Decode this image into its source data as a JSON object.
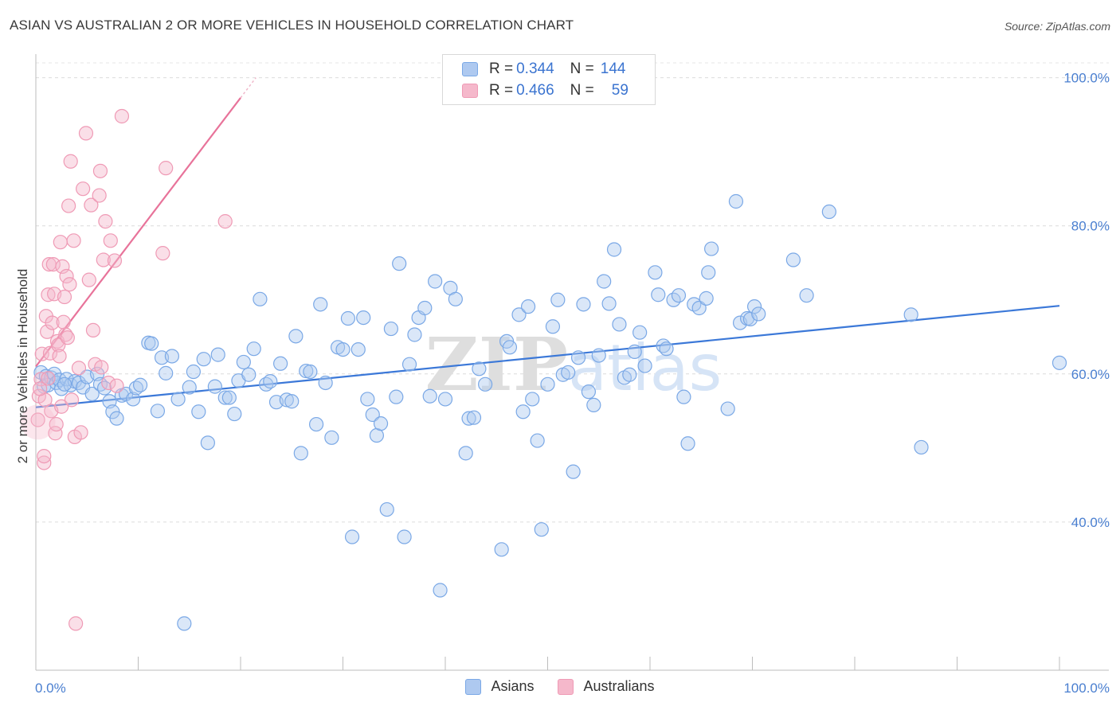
{
  "title": "ASIAN VS AUSTRALIAN 2 OR MORE VEHICLES IN HOUSEHOLD CORRELATION CHART",
  "source": "Source: ZipAtlas.com",
  "watermark": "ZIPatlas",
  "legend_top": {
    "rows": [
      {
        "r_label": "R = ",
        "r_value": "0.344",
        "n_label": "N = ",
        "n_value": "144",
        "color": "#aec9f0"
      },
      {
        "r_label": "R = ",
        "r_value": "0.466",
        "n_label": "N = ",
        "n_value": "59",
        "color": "#f5b8cb"
      }
    ]
  },
  "chart_data": {
    "type": "scatter",
    "title": "ASIAN VS AUSTRALIAN 2 OR MORE VEHICLES IN HOUSEHOLD CORRELATION CHART",
    "xlabel": "",
    "ylabel": "2 or more Vehicles in Household",
    "xlim": [
      0,
      100
    ],
    "ylim": [
      20,
      102
    ],
    "x_tick_labels": [
      "0.0%",
      "100.0%"
    ],
    "y_tick_labels": [
      "40.0%",
      "60.0%",
      "80.0%",
      "100.0%"
    ],
    "y_ticks": [
      40,
      60,
      80,
      100
    ],
    "legend": [
      "Asians",
      "Australians"
    ],
    "colors": {
      "Asians": "#7aa8e6",
      "Australians": "#ef9ab5",
      "asian_line": "#3b78d8",
      "aus_line": "#e8739a"
    },
    "series": [
      {
        "name": "Asians",
        "trend": {
          "x": [
            0,
            100
          ],
          "y": [
            55.5,
            69.2
          ]
        },
        "points": [
          [
            0.5,
            60.2
          ],
          [
            0.8,
            58.3
          ],
          [
            1.0,
            59.7
          ],
          [
            1.2,
            58.5
          ],
          [
            1.5,
            59.5
          ],
          [
            1.8,
            60.0
          ],
          [
            2.0,
            58.8
          ],
          [
            2.3,
            59.2
          ],
          [
            2.5,
            58.0
          ],
          [
            3.0,
            59.3
          ],
          [
            3.4,
            58.5
          ],
          [
            3.8,
            59.0
          ],
          [
            4.2,
            58.8
          ],
          [
            4.6,
            58.2
          ],
          [
            5.0,
            59.6
          ],
          [
            5.5,
            57.3
          ],
          [
            6.0,
            60.0
          ],
          [
            6.3,
            58.6
          ],
          [
            6.7,
            58.1
          ],
          [
            7.2,
            56.3
          ],
          [
            7.5,
            54.9
          ],
          [
            7.9,
            54.0
          ],
          [
            8.4,
            57.1
          ],
          [
            8.8,
            57.3
          ],
          [
            9.5,
            56.6
          ],
          [
            9.8,
            58.1
          ],
          [
            10.2,
            58.5
          ],
          [
            11.0,
            64.2
          ],
          [
            11.3,
            64.1
          ],
          [
            11.9,
            55.0
          ],
          [
            12.3,
            62.2
          ],
          [
            12.7,
            60.1
          ],
          [
            13.3,
            62.4
          ],
          [
            13.9,
            56.6
          ],
          [
            14.5,
            26.3
          ],
          [
            15.0,
            58.2
          ],
          [
            15.4,
            60.3
          ],
          [
            15.9,
            54.9
          ],
          [
            16.4,
            62.0
          ],
          [
            16.8,
            50.7
          ],
          [
            17.5,
            58.3
          ],
          [
            17.8,
            62.6
          ],
          [
            18.5,
            56.8
          ],
          [
            18.9,
            56.8
          ],
          [
            19.4,
            54.6
          ],
          [
            19.8,
            59.1
          ],
          [
            20.3,
            61.6
          ],
          [
            20.8,
            59.9
          ],
          [
            21.3,
            63.4
          ],
          [
            21.9,
            70.1
          ],
          [
            22.5,
            58.6
          ],
          [
            22.9,
            59.0
          ],
          [
            23.5,
            56.2
          ],
          [
            23.9,
            61.4
          ],
          [
            24.5,
            56.5
          ],
          [
            25.0,
            56.3
          ],
          [
            25.4,
            65.1
          ],
          [
            25.9,
            49.3
          ],
          [
            26.4,
            60.4
          ],
          [
            26.8,
            60.3
          ],
          [
            27.4,
            53.2
          ],
          [
            27.8,
            69.4
          ],
          [
            28.3,
            58.8
          ],
          [
            28.9,
            51.4
          ],
          [
            29.5,
            63.6
          ],
          [
            30.0,
            63.3
          ],
          [
            30.5,
            67.5
          ],
          [
            30.9,
            38.0
          ],
          [
            31.5,
            63.3
          ],
          [
            32.0,
            67.6
          ],
          [
            32.4,
            56.6
          ],
          [
            32.9,
            54.5
          ],
          [
            33.3,
            51.7
          ],
          [
            33.7,
            53.3
          ],
          [
            34.3,
            41.7
          ],
          [
            34.7,
            66.1
          ],
          [
            35.2,
            56.9
          ],
          [
            35.5,
            74.9
          ],
          [
            36.0,
            38.0
          ],
          [
            36.5,
            61.3
          ],
          [
            37.0,
            65.3
          ],
          [
            37.4,
            67.6
          ],
          [
            38.0,
            68.9
          ],
          [
            38.5,
            57.0
          ],
          [
            39.0,
            72.5
          ],
          [
            39.5,
            30.8
          ],
          [
            40.0,
            56.6
          ],
          [
            40.5,
            71.6
          ],
          [
            41.0,
            70.1
          ],
          [
            42.0,
            49.3
          ],
          [
            42.3,
            54.0
          ],
          [
            42.8,
            54.1
          ],
          [
            43.3,
            60.7
          ],
          [
            43.9,
            58.6
          ],
          [
            45.5,
            36.3
          ],
          [
            46.0,
            64.4
          ],
          [
            46.3,
            63.6
          ],
          [
            47.2,
            68.0
          ],
          [
            47.6,
            54.9
          ],
          [
            48.1,
            69.1
          ],
          [
            48.5,
            56.6
          ],
          [
            49.0,
            51.0
          ],
          [
            49.4,
            39.0
          ],
          [
            50.0,
            58.6
          ],
          [
            50.5,
            66.4
          ],
          [
            51.0,
            70.0
          ],
          [
            51.5,
            59.9
          ],
          [
            52.0,
            60.2
          ],
          [
            52.5,
            46.8
          ],
          [
            53.0,
            62.2
          ],
          [
            53.5,
            69.4
          ],
          [
            54.0,
            57.6
          ],
          [
            54.5,
            55.8
          ],
          [
            55.0,
            62.5
          ],
          [
            55.5,
            72.5
          ],
          [
            56.0,
            69.5
          ],
          [
            56.5,
            76.8
          ],
          [
            57.0,
            66.7
          ],
          [
            57.5,
            59.5
          ],
          [
            58.0,
            59.9
          ],
          [
            58.5,
            63.0
          ],
          [
            59.0,
            65.6
          ],
          [
            59.5,
            61.1
          ],
          [
            60.5,
            73.7
          ],
          [
            60.8,
            70.7
          ],
          [
            61.3,
            63.8
          ],
          [
            61.6,
            63.4
          ],
          [
            62.3,
            70.0
          ],
          [
            62.8,
            70.6
          ],
          [
            63.3,
            56.9
          ],
          [
            63.7,
            50.6
          ],
          [
            64.3,
            69.4
          ],
          [
            64.8,
            68.9
          ],
          [
            65.5,
            70.2
          ],
          [
            65.7,
            73.7
          ],
          [
            66.0,
            76.9
          ],
          [
            67.6,
            55.3
          ],
          [
            68.4,
            83.3
          ],
          [
            68.8,
            66.9
          ],
          [
            69.5,
            67.5
          ],
          [
            69.8,
            67.4
          ],
          [
            70.2,
            69.1
          ],
          [
            70.6,
            68.1
          ],
          [
            74.0,
            75.4
          ],
          [
            75.3,
            70.6
          ],
          [
            77.5,
            81.9
          ],
          [
            85.5,
            68.0
          ],
          [
            86.5,
            50.1
          ],
          [
            100.0,
            61.5
          ],
          [
            2.8,
            58.6
          ]
        ]
      },
      {
        "name": "Australians",
        "trend": {
          "x": [
            0,
            21.5
          ],
          "y": [
            61.0,
            100
          ]
        },
        "points": [
          [
            0.3,
            57.0
          ],
          [
            0.5,
            59.3
          ],
          [
            0.6,
            62.7
          ],
          [
            0.8,
            48.0
          ],
          [
            0.8,
            48.9
          ],
          [
            0.9,
            56.5
          ],
          [
            1.0,
            67.8
          ],
          [
            1.1,
            65.7
          ],
          [
            1.2,
            70.7
          ],
          [
            1.3,
            74.8
          ],
          [
            1.4,
            62.8
          ],
          [
            1.5,
            55.0
          ],
          [
            1.6,
            66.9
          ],
          [
            1.7,
            74.8
          ],
          [
            1.8,
            70.8
          ],
          [
            1.9,
            52.0
          ],
          [
            2.0,
            53.2
          ],
          [
            2.1,
            64.4
          ],
          [
            2.2,
            63.9
          ],
          [
            2.3,
            62.4
          ],
          [
            2.4,
            77.8
          ],
          [
            2.5,
            55.6
          ],
          [
            2.6,
            74.5
          ],
          [
            2.7,
            67.0
          ],
          [
            2.8,
            70.4
          ],
          [
            2.9,
            65.3
          ],
          [
            3.0,
            73.2
          ],
          [
            3.1,
            64.9
          ],
          [
            3.2,
            82.7
          ],
          [
            3.3,
            72.1
          ],
          [
            3.4,
            88.7
          ],
          [
            3.5,
            56.5
          ],
          [
            3.7,
            78.0
          ],
          [
            3.8,
            51.5
          ],
          [
            3.9,
            26.3
          ],
          [
            4.2,
            60.8
          ],
          [
            4.4,
            52.1
          ],
          [
            4.6,
            85.0
          ],
          [
            4.9,
            92.5
          ],
          [
            5.2,
            72.7
          ],
          [
            5.4,
            82.8
          ],
          [
            5.6,
            65.9
          ],
          [
            5.8,
            61.3
          ],
          [
            6.2,
            84.1
          ],
          [
            6.3,
            87.4
          ],
          [
            6.4,
            60.9
          ],
          [
            6.6,
            75.4
          ],
          [
            6.8,
            80.6
          ],
          [
            7.1,
            58.8
          ],
          [
            7.3,
            78.0
          ],
          [
            7.7,
            75.3
          ],
          [
            7.9,
            58.4
          ],
          [
            8.4,
            94.8
          ],
          [
            12.4,
            76.3
          ],
          [
            12.7,
            87.8
          ],
          [
            18.5,
            80.6
          ],
          [
            1.2,
            59.4
          ],
          [
            0.2,
            53.8
          ],
          [
            0.4,
            58.0
          ]
        ]
      }
    ]
  },
  "bottom_legend": [
    {
      "label": "Asians",
      "color": "#aec9f0"
    },
    {
      "label": "Australians",
      "color": "#f5b8cb"
    }
  ]
}
